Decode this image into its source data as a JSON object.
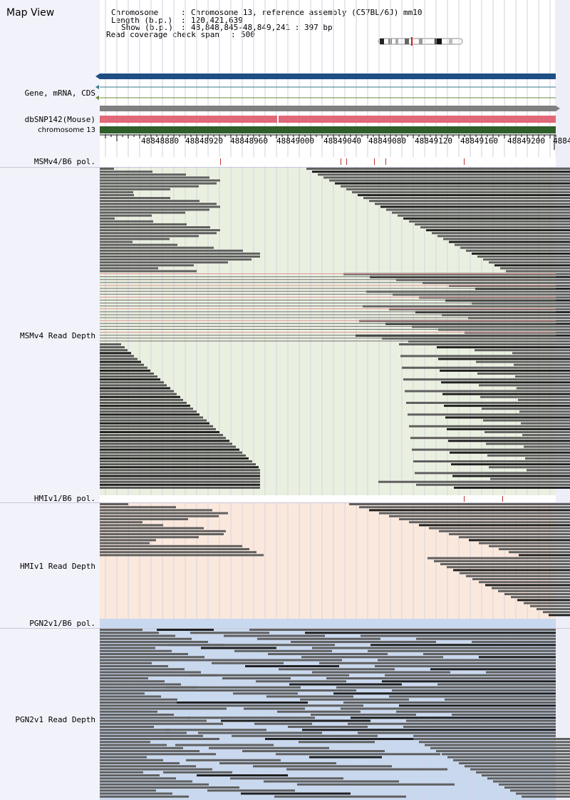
{
  "title": "Map View",
  "info": {
    "chromosome_label": "Chromosome",
    "chromosome_value": "Chromosome 13, reference assembly (C57BL/6J) mm10",
    "length_label": "Length (b.p.)",
    "length_value": "120,421,639",
    "show_label": "Show (b.p.)",
    "show_value": "48,848,845-48,849,241 : 397 bp",
    "coverage_label": "Read coverage check span",
    "coverage_value": "500"
  },
  "track_labels": {
    "gene": "Gene, mRNA, CDS",
    "dbsnp": "dbSNP142(Mouse)",
    "chrom": "chromosome 13",
    "msm_pol": "MSMv4/B6 pol.",
    "msm_depth": "MSMv4 Read Depth",
    "hmi_pol": "HMIv1/B6 pol.",
    "hmi_depth": "HMIv1 Read Depth",
    "pgn_pol": "PGN2v1/B6 pol.",
    "pgn_depth": "PGN2v1 Read Depth"
  },
  "ruler": {
    "ticks": [
      "48848880",
      "48848920",
      "48848960",
      "48849000",
      "48849040",
      "48849080",
      "48849120",
      "48849160",
      "48849200",
      "4884"
    ]
  },
  "colors": {
    "msm_bg": "#eaf0e0",
    "hmi_bg": "#fbe8dc",
    "pgn_bg": "#c8d8ee",
    "gene_bar": "#1f4e85",
    "dbsnp_bar": "#e06878",
    "chrom_bar": "#2f5e2a",
    "read": "#606060",
    "read_dark": "#202020",
    "variant_tick": "#c03030"
  }
}
